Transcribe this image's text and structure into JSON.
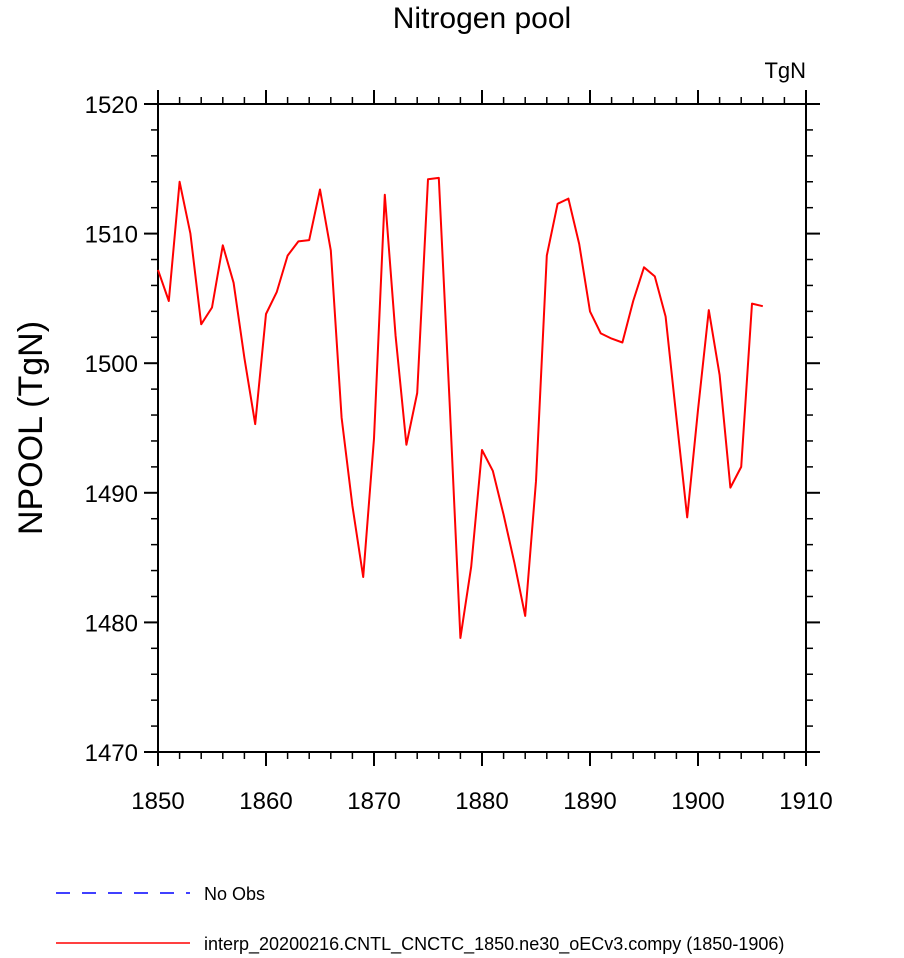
{
  "chart_data": {
    "type": "line",
    "title": "Nitrogen pool",
    "units_label": "TgN",
    "ylabel": "NPOOL  (TgN)",
    "xlim": [
      1850,
      1910
    ],
    "ylim": [
      1470,
      1520
    ],
    "x_ticks": [
      1850,
      1860,
      1870,
      1880,
      1890,
      1900,
      1910
    ],
    "y_ticks": [
      1470,
      1480,
      1490,
      1500,
      1510,
      1520
    ],
    "x_minor_step": 2,
    "y_minor_step": 2,
    "grid": false,
    "legend_position": "bottom-left",
    "series": [
      {
        "name": "No Obs",
        "color": "#0000ff",
        "dash": "dashed",
        "x": [],
        "y": []
      },
      {
        "name": "interp_20200216.CNTL_CNCTC_1850.ne30_oECv3.compy (1850-1906)",
        "color": "#ff0000",
        "dash": "solid",
        "x": [
          1850,
          1851,
          1852,
          1853,
          1854,
          1855,
          1856,
          1857,
          1858,
          1859,
          1860,
          1861,
          1862,
          1863,
          1864,
          1865,
          1866,
          1867,
          1868,
          1869,
          1870,
          1871,
          1872,
          1873,
          1874,
          1875,
          1876,
          1877,
          1878,
          1879,
          1880,
          1881,
          1882,
          1883,
          1884,
          1885,
          1886,
          1887,
          1888,
          1889,
          1890,
          1891,
          1892,
          1893,
          1894,
          1895,
          1896,
          1897,
          1898,
          1899,
          1900,
          1901,
          1902,
          1903,
          1904,
          1905,
          1906
        ],
        "y": [
          1507.2,
          1504.8,
          1514.0,
          1510.0,
          1503.0,
          1504.3,
          1509.1,
          1506.2,
          1500.4,
          1495.3,
          1503.8,
          1505.5,
          1508.3,
          1509.4,
          1509.5,
          1513.4,
          1508.7,
          1495.8,
          1489.0,
          1483.5,
          1494.2,
          1513.0,
          1502.1,
          1493.7,
          1497.7,
          1514.2,
          1514.3,
          1497.0,
          1478.8,
          1484.3,
          1493.3,
          1491.7,
          1488.3,
          1484.6,
          1480.5,
          1490.9,
          1508.3,
          1512.3,
          1512.7,
          1509.2,
          1504.0,
          1502.3,
          1501.9,
          1501.6,
          1504.8,
          1507.4,
          1506.7,
          1503.6,
          1495.8,
          1488.1,
          1496.4,
          1504.1,
          1499.1,
          1490.4,
          1492.0,
          1504.6,
          1504.4
        ]
      }
    ]
  }
}
